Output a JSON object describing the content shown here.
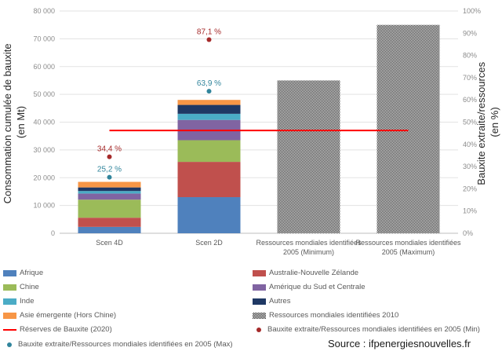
{
  "chart_data": {
    "type": "bar",
    "stacked": true,
    "categories": [
      "Scen 4D",
      "Scen 2D",
      "Ressources mondiales identifiées 2005 (Minimum)",
      "Ressources mondiales identifiées 2005 (Maximum)"
    ],
    "category_lines": [
      [
        "Scen 4D"
      ],
      [
        "Scen 2D"
      ],
      [
        "Ressources mondiales identifiées",
        "2005 (Minimum)"
      ],
      [
        "Ressources mondiales identifiées",
        "2005 (Maximum)"
      ]
    ],
    "ylabel_left": [
      "Consommation cumulée de bauxite",
      "(en Mt)"
    ],
    "ylabel_right": [
      "Bauxite extraite/ressources",
      "(en %)"
    ],
    "ylim_left": [
      0,
      80000
    ],
    "ylim_right": [
      0,
      100
    ],
    "yticks_left": [
      "0",
      "10 000",
      "20 000",
      "30 000",
      "40 000",
      "50 000",
      "60 000",
      "70 000",
      "80 000"
    ],
    "yticks_right": [
      "0%",
      "10%",
      "20%",
      "30%",
      "40%",
      "50%",
      "60%",
      "70%",
      "80%",
      "90%",
      "100%"
    ],
    "series": [
      {
        "name": "Afrique",
        "color": "#4f81bd",
        "values": [
          2300,
          13000,
          0,
          0
        ]
      },
      {
        "name": "Australie-Nouvelle Zélande",
        "color": "#c0504d",
        "values": [
          3300,
          12700,
          0,
          0
        ]
      },
      {
        "name": "Chine",
        "color": "#9bbb59",
        "values": [
          6500,
          7800,
          0,
          0
        ]
      },
      {
        "name": "Amérique du Sud et Centrale",
        "color": "#8064a2",
        "values": [
          2200,
          7300,
          0,
          0
        ]
      },
      {
        "name": "Inde",
        "color": "#4bacc6",
        "values": [
          900,
          2200,
          0,
          0
        ]
      },
      {
        "name": "Autres",
        "color": "#1f3864",
        "values": [
          1300,
          3200,
          0,
          0
        ]
      },
      {
        "name": "Asie émergente (Hors Chine)",
        "color": "#f79646",
        "values": [
          2000,
          1800,
          0,
          0
        ]
      },
      {
        "name": "Ressources mondiales identifiées 2010",
        "color": "#222222",
        "pattern": "checker",
        "values": [
          0,
          0,
          55000,
          75000
        ]
      }
    ],
    "reference_line": {
      "name": "Réserves de Bauxite (2020)",
      "color": "#ff0000",
      "value": 37000,
      "axis": "left",
      "from_category": 0,
      "to_category": 3
    },
    "points_min": {
      "name": "Bauxite extraite/Ressources mondiales identifiées en 2005 (Min)",
      "color": "#a52a2a",
      "values": [
        34.4,
        87.1
      ],
      "labels": [
        "34,4 %",
        "87,1 %"
      ]
    },
    "points_max": {
      "name": "Bauxite extraite/Ressources mondiales identifiées en 2005 (Max)",
      "color": "#31859c",
      "values": [
        25.2,
        63.9
      ],
      "labels": [
        "25,2 %",
        "63,9 %"
      ]
    },
    "legend_placement": "bottom",
    "grid": true
  },
  "source": "Source : ifpenergiesnouvelles.fr"
}
